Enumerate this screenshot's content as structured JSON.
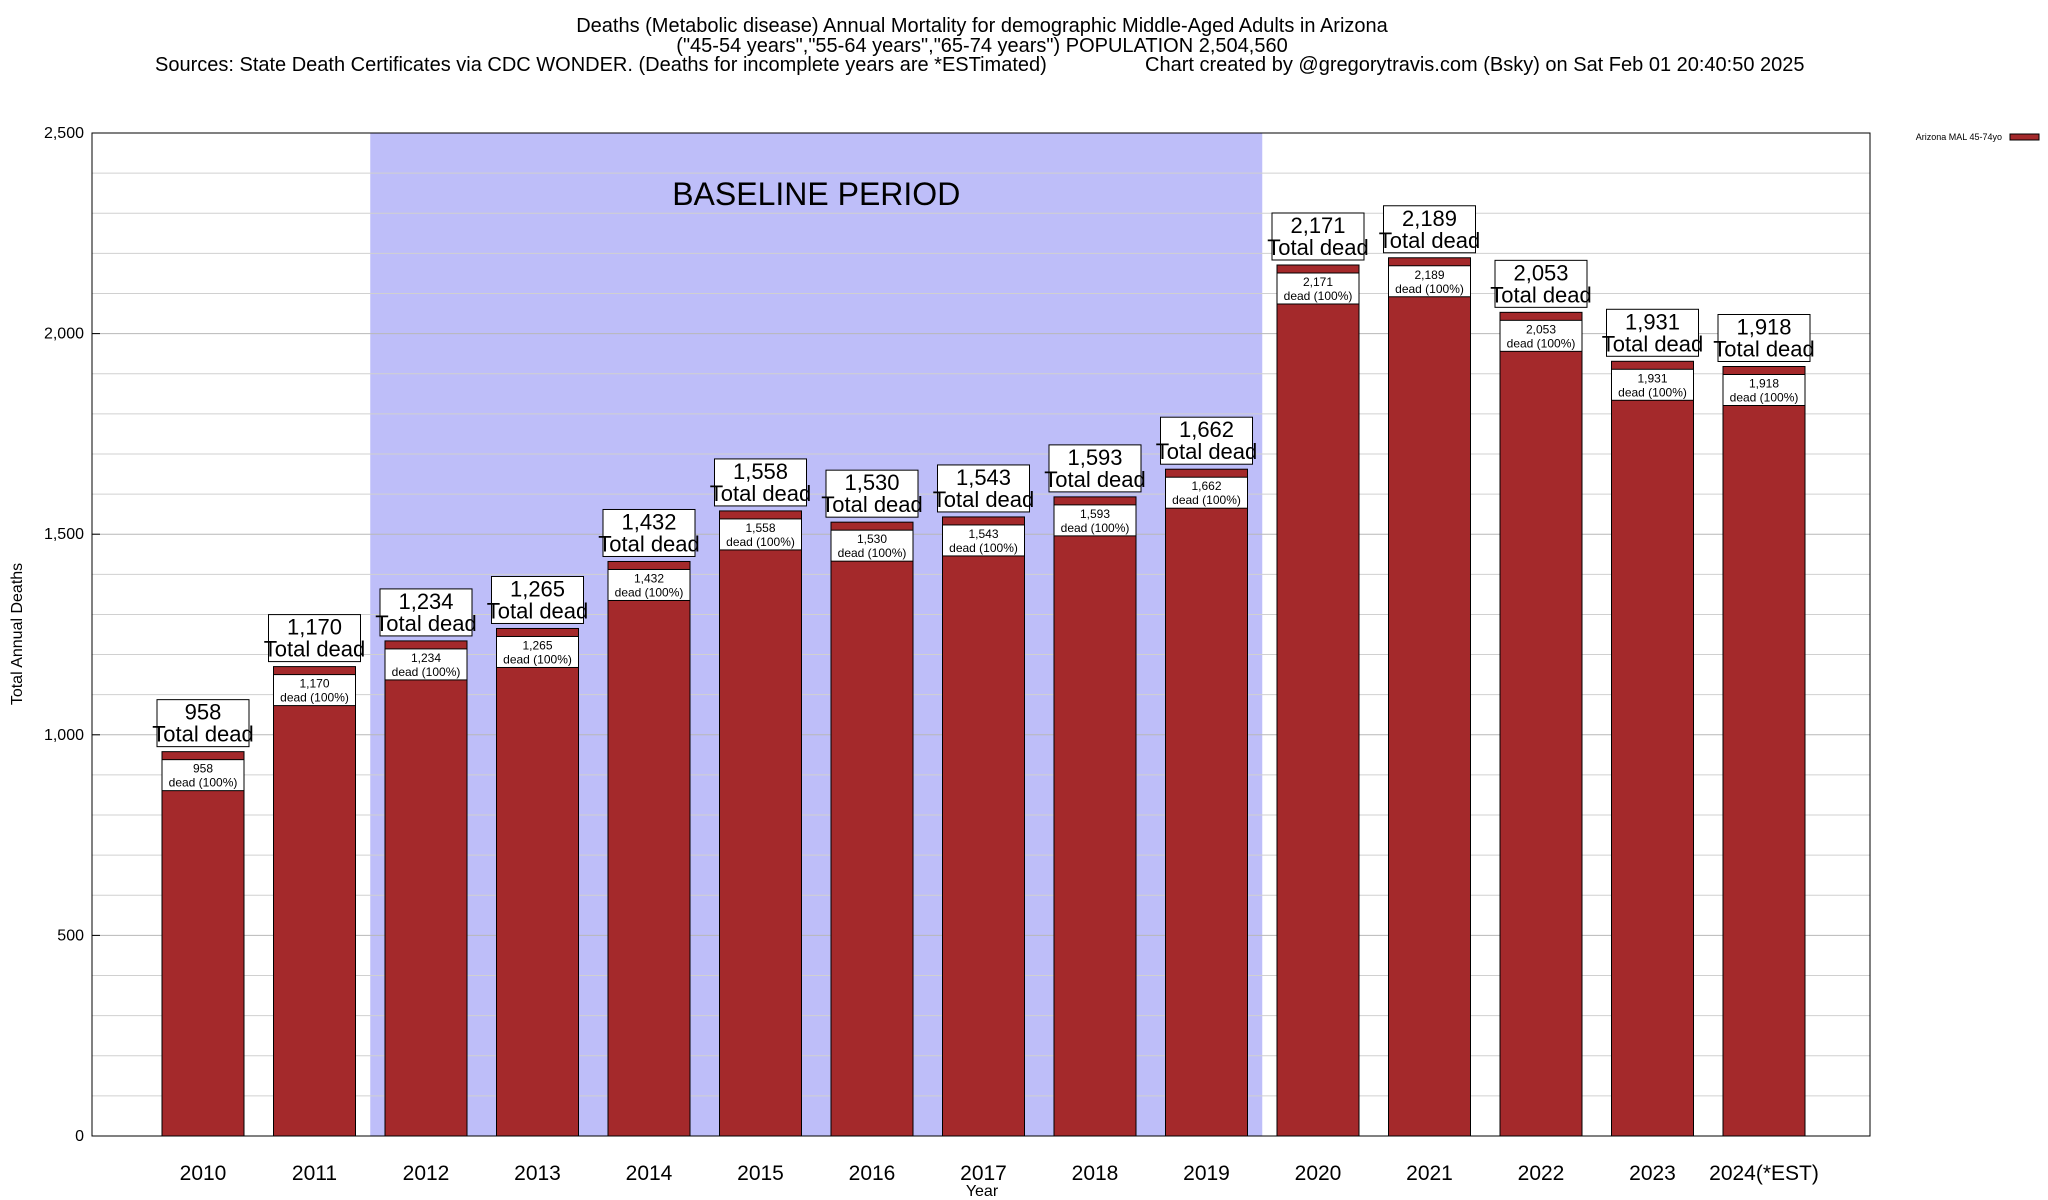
{
  "chart_data": {
    "type": "bar",
    "title": [
      "Deaths (Metabolic disease) Annual Mortality for demographic Middle-Aged Adults in Arizona",
      "(\"45-54 years\",\"55-64 years\",\"65-74 years\") POPULATION 2,504,560"
    ],
    "sources_text": "Sources: State Death Certificates via CDC WONDER. (Deaths for incomplete years are *ESTimated)",
    "credit_text": "Chart created by @gregorytravis.com (Bsky) on Sat Feb 01 20:40:50 2025",
    "xlabel": "Year",
    "ylabel": "Total Annual Deaths",
    "ylim": [
      0,
      2500
    ],
    "yticks": [
      0,
      500,
      1000,
      1500,
      2000,
      2500
    ],
    "ytick_labels": [
      "0",
      "500",
      "1,000",
      "1,500",
      "2,000",
      "2,500"
    ],
    "grid": true,
    "legend": {
      "position": "top-right",
      "entries": [
        {
          "name": "Arizona MAL 45-74yo",
          "color": "#a4292b"
        }
      ]
    },
    "baseline": {
      "label": "BASELINE PERIOD",
      "from": "2012",
      "to": "2019",
      "color": "#bebef9"
    },
    "categories": [
      "2010",
      "2011",
      "2012",
      "2013",
      "2014",
      "2015",
      "2016",
      "2017",
      "2018",
      "2019",
      "2020",
      "2021",
      "2022",
      "2023",
      "2024(*EST)"
    ],
    "series": [
      {
        "name": "Arizona MAL 45-74yo",
        "color": "#a4292b",
        "values": [
          958,
          1170,
          1234,
          1265,
          1432,
          1558,
          1530,
          1543,
          1593,
          1662,
          2171,
          2189,
          2053,
          1931,
          1918
        ]
      }
    ],
    "total_labels": [
      "958",
      "1,170",
      "1,234",
      "1,265",
      "1,432",
      "1,558",
      "1,530",
      "1,543",
      "1,593",
      "1,662",
      "2,171",
      "2,189",
      "2,053",
      "1,931",
      "1,918"
    ],
    "total_suffix": "Total dead",
    "inner_suffix": "dead (100%)"
  }
}
